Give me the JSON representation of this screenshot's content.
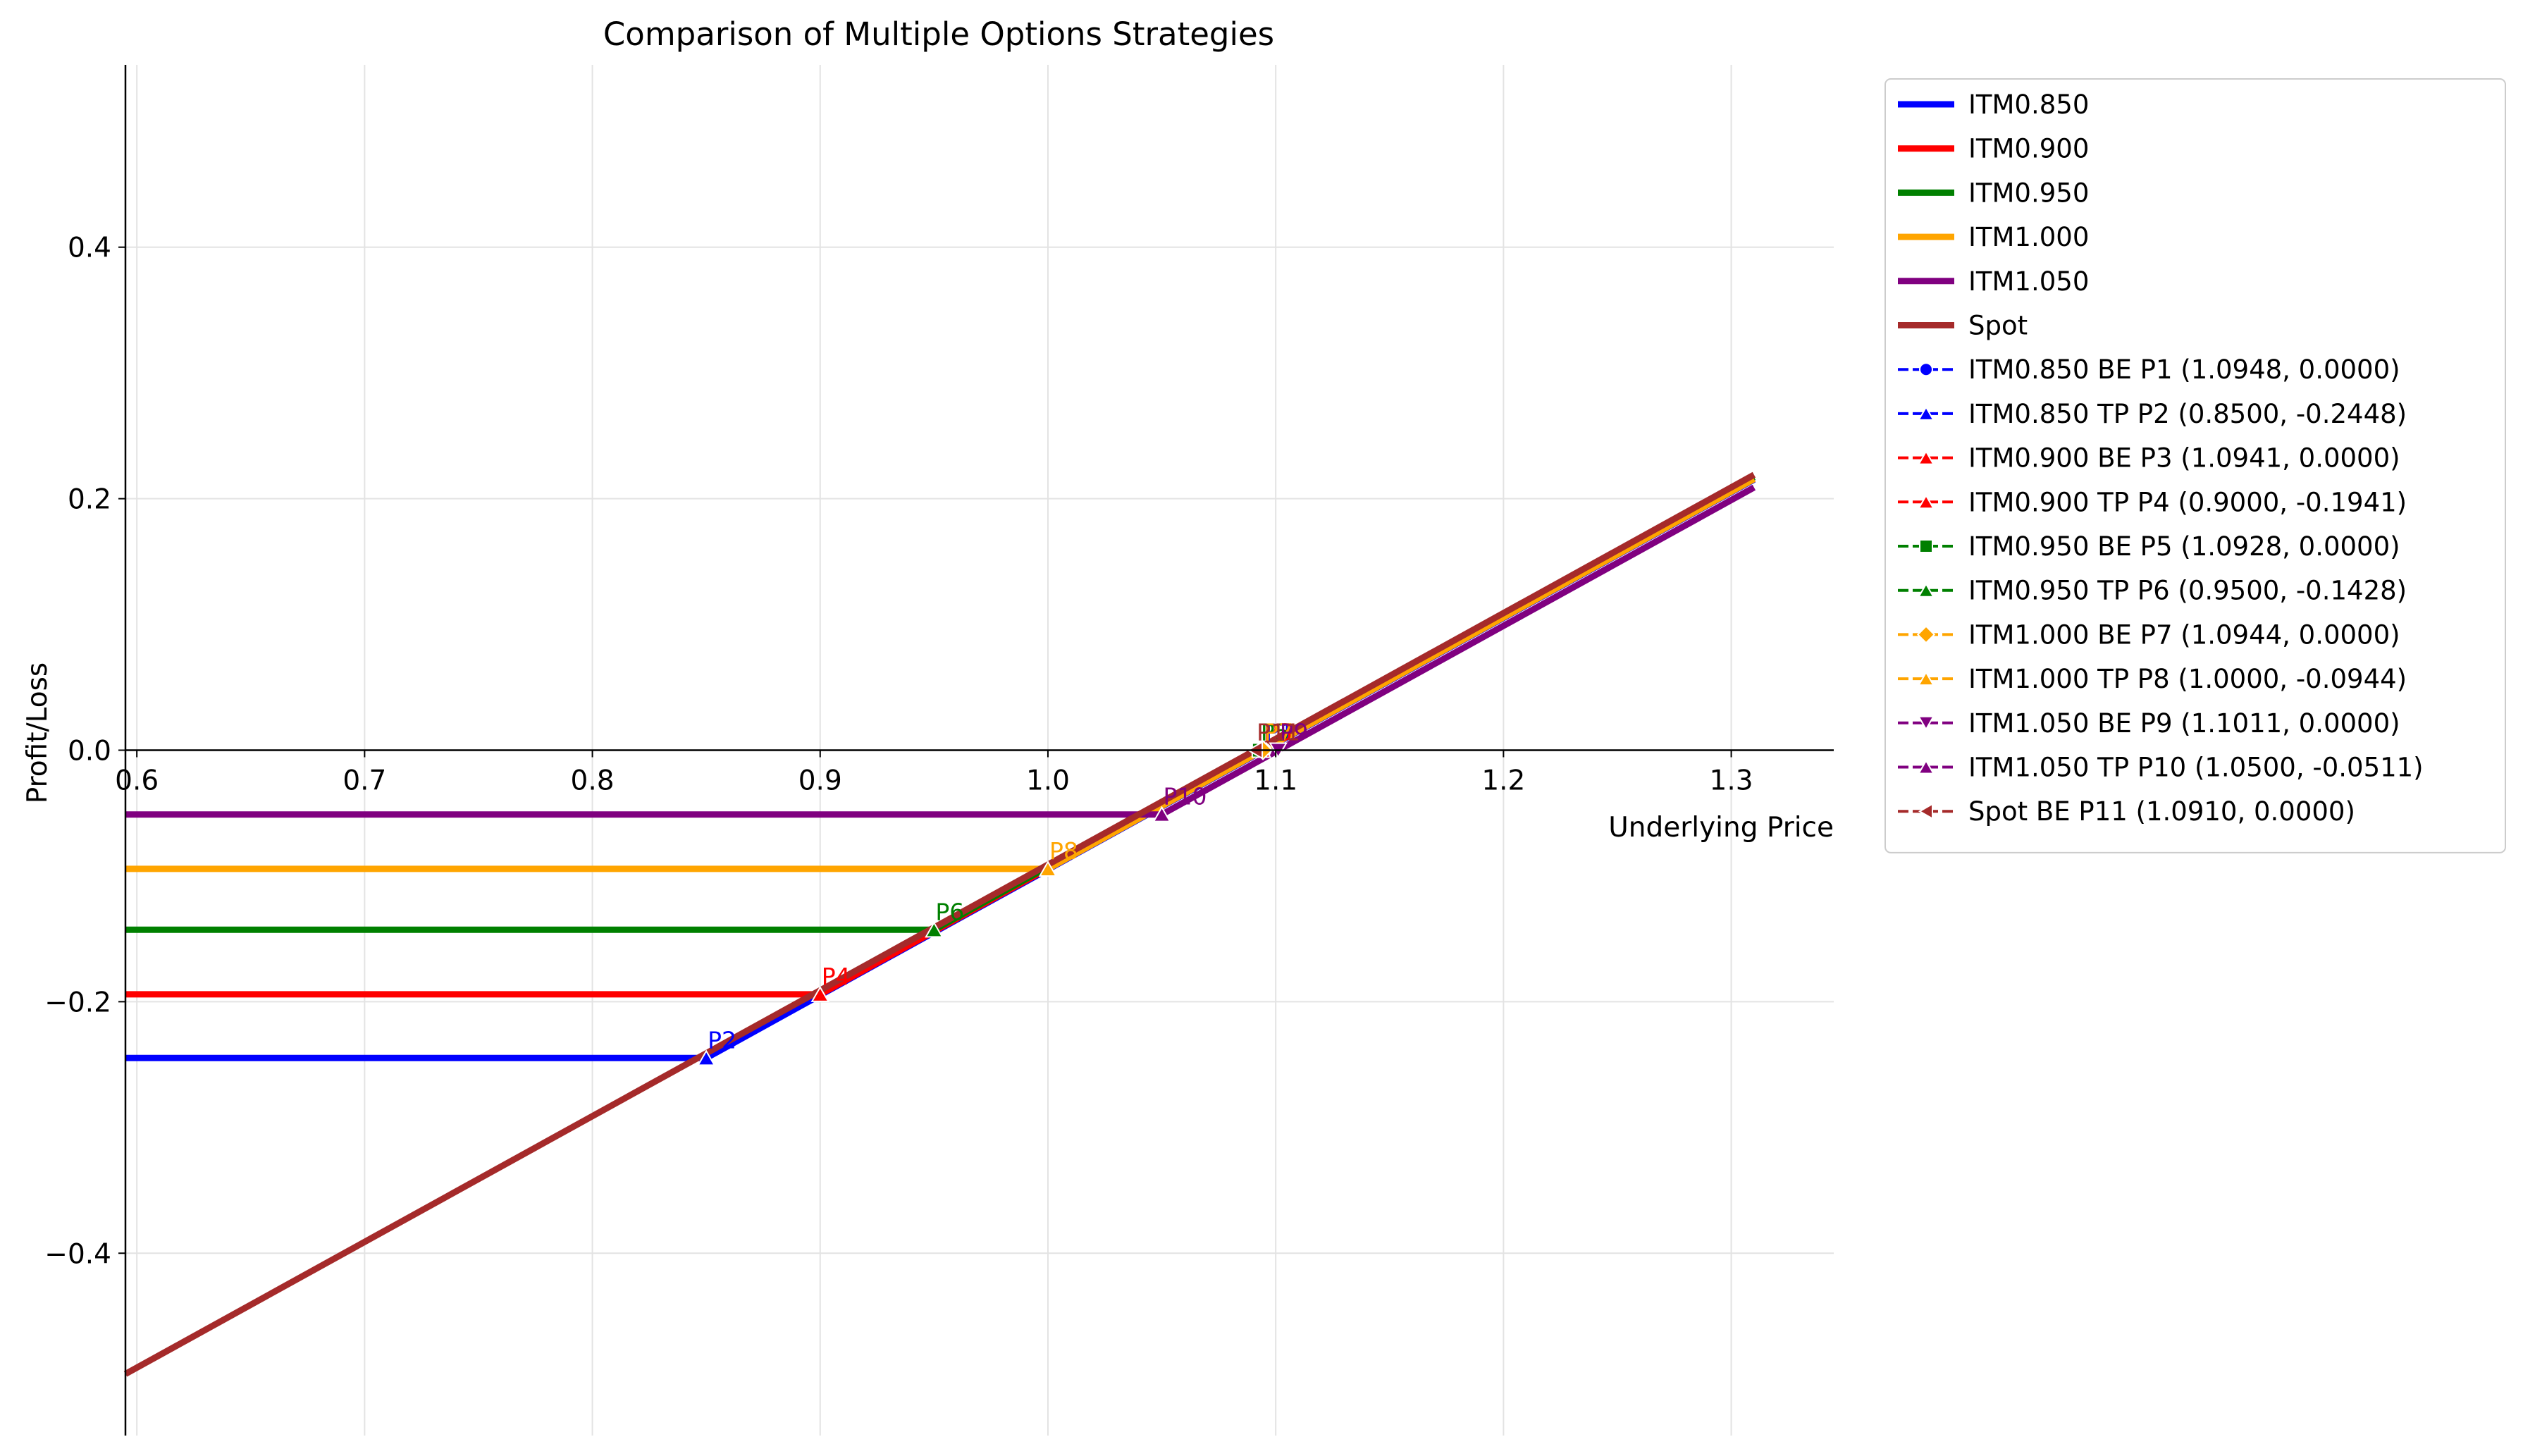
{
  "chart_data": {
    "type": "line",
    "title": "Comparison of Multiple Options Strategies",
    "xlabel": "Underlying Price",
    "ylabel": "Profit/Loss",
    "xlim": [
      0.595,
      1.345
    ],
    "ylim": [
      -0.545,
      0.545
    ],
    "x_ticks": [
      0.6,
      0.7,
      0.8,
      0.9,
      1.0,
      1.1,
      1.2,
      1.3
    ],
    "x_tick_labels": [
      "0.6",
      "0.7",
      "0.8",
      "0.9",
      "1.0",
      "1.1",
      "1.2",
      "1.3"
    ],
    "y_ticks": [
      -0.4,
      -0.2,
      0.0,
      0.2,
      0.4
    ],
    "y_tick_labels": [
      "−0.4",
      "−0.2",
      "0.0",
      "0.2",
      "0.4"
    ],
    "grid": true,
    "legend_position": "outside-right-top",
    "series": [
      {
        "name": "ITM0.850",
        "color": "#0000ff",
        "x": [
          0.595,
          0.85,
          0.9,
          1.31
        ],
        "y": [
          -0.2448,
          -0.2448,
          -0.1948,
          0.2152
        ]
      },
      {
        "name": "ITM0.900",
        "color": "#ff0000",
        "x": [
          0.595,
          0.9,
          0.95,
          1.31
        ],
        "y": [
          -0.1941,
          -0.1941,
          -0.1441,
          0.2159
        ]
      },
      {
        "name": "ITM0.950",
        "color": "#008000",
        "x": [
          0.595,
          0.95,
          1.0,
          1.31
        ],
        "y": [
          -0.1428,
          -0.1428,
          -0.0928,
          0.2172
        ]
      },
      {
        "name": "ITM1.000",
        "color": "#ffa500",
        "x": [
          0.595,
          1.0,
          1.31
        ],
        "y": [
          -0.0944,
          -0.0944,
          0.2156
        ]
      },
      {
        "name": "ITM1.050",
        "color": "#800080",
        "x": [
          0.595,
          1.05,
          1.31
        ],
        "y": [
          -0.0511,
          -0.0511,
          0.2089
        ]
      },
      {
        "name": "Spot",
        "color": "#a52a2a",
        "x": [
          0.595,
          1.31
        ],
        "y": [
          -0.496,
          0.219
        ]
      }
    ],
    "points": [
      {
        "name": "ITM0.850 BE P1 (1.0948, 0.0000)",
        "label": "P1",
        "x": 1.0948,
        "y": 0.0,
        "color": "#0000ff",
        "marker": "circle"
      },
      {
        "name": "ITM0.850 TP P2 (0.8500, -0.2448)",
        "label": "P2",
        "x": 0.85,
        "y": -0.2448,
        "color": "#0000ff",
        "marker": "triangle-up"
      },
      {
        "name": "ITM0.900 BE P3 (1.0941, 0.0000)",
        "label": "P3",
        "x": 1.0941,
        "y": 0.0,
        "color": "#ff0000",
        "marker": "triangle-up"
      },
      {
        "name": "ITM0.900 TP P4 (0.9000, -0.1941)",
        "label": "P4",
        "x": 0.9,
        "y": -0.1941,
        "color": "#ff0000",
        "marker": "triangle-up"
      },
      {
        "name": "ITM0.950 BE P5 (1.0928, 0.0000)",
        "label": "P5",
        "x": 1.0928,
        "y": 0.0,
        "color": "#008000",
        "marker": "square"
      },
      {
        "name": "ITM0.950 TP P6 (0.9500, -0.1428)",
        "label": "P6",
        "x": 0.95,
        "y": -0.1428,
        "color": "#008000",
        "marker": "triangle-up"
      },
      {
        "name": "ITM1.000 BE P7 (1.0944, 0.0000)",
        "label": "P7",
        "x": 1.0944,
        "y": 0.0,
        "color": "#ffa500",
        "marker": "diamond"
      },
      {
        "name": "ITM1.000 TP P8 (1.0000, -0.0944)",
        "label": "P8",
        "x": 1.0,
        "y": -0.0944,
        "color": "#ffa500",
        "marker": "triangle-up"
      },
      {
        "name": "ITM1.050 BE P9 (1.1011, 0.0000)",
        "label": "P9",
        "x": 1.1011,
        "y": 0.0,
        "color": "#800080",
        "marker": "triangle-down"
      },
      {
        "name": "ITM1.050 TP P10 (1.0500, -0.0511)",
        "label": "P10",
        "x": 1.05,
        "y": -0.0511,
        "color": "#800080",
        "marker": "triangle-up"
      },
      {
        "name": "Spot BE P11 (1.0910, 0.0000)",
        "label": "P11",
        "x": 1.091,
        "y": 0.0,
        "color": "#a52a2a",
        "marker": "triangle-left"
      }
    ]
  }
}
